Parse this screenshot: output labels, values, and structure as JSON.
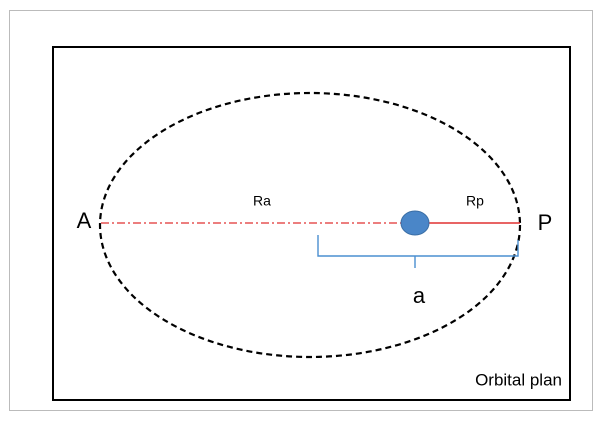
{
  "labels": {
    "apoapsis": "A",
    "periapsis": "P",
    "ra": "Ra",
    "rp": "Rp",
    "semi_major_axis": "a",
    "plane": "Orbital plan"
  }
}
